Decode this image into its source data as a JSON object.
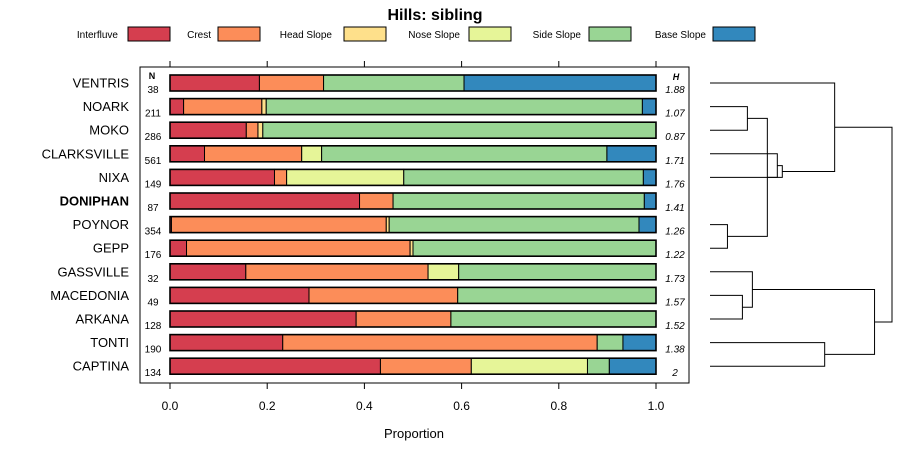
{
  "chart_data": {
    "type": "bar",
    "stacked": true,
    "orientation": "horizontal",
    "title": "Hills: sibling",
    "xlabel": "Proportion",
    "xlim": [
      0,
      1
    ],
    "xticks": [
      "0.0",
      "0.2",
      "0.4",
      "0.6",
      "0.8",
      "1.0"
    ],
    "xtick_values": [
      0,
      0.2,
      0.4,
      0.6,
      0.8,
      1.0
    ],
    "n_header": "N",
    "h_header": "H",
    "legend": [
      {
        "name": "Interfluve",
        "color": "#d53e4f"
      },
      {
        "name": "Crest",
        "color": "#fc8d59"
      },
      {
        "name": "Head Slope",
        "color": "#fee08b"
      },
      {
        "name": "Nose Slope",
        "color": "#e6f598"
      },
      {
        "name": "Side Slope",
        "color": "#99d594"
      },
      {
        "name": "Base Slope",
        "color": "#3288bd"
      }
    ],
    "rows": [
      {
        "label": "VENTRIS",
        "n": "38",
        "h": "1.88",
        "bold": false,
        "values": [
          0.184,
          0.132,
          0,
          0,
          0.289,
          0.395
        ]
      },
      {
        "label": "NOARK",
        "n": "211",
        "h": "1.07",
        "bold": false,
        "values": [
          0.028,
          0.161,
          0.009,
          0,
          0.774,
          0.028
        ]
      },
      {
        "label": "MOKO",
        "n": "286",
        "h": "0.87",
        "bold": false,
        "values": [
          0.157,
          0.024,
          0.01,
          0,
          0.809,
          0
        ]
      },
      {
        "label": "CLARKSVILLE",
        "n": "561",
        "h": "1.71",
        "bold": false,
        "values": [
          0.071,
          0.2,
          0,
          0.041,
          0.587,
          0.101
        ]
      },
      {
        "label": "NIXA",
        "n": "149",
        "h": "1.76",
        "bold": false,
        "values": [
          0.215,
          0.025,
          0,
          0.241,
          0.493,
          0.026
        ]
      },
      {
        "label": "DONIPHAN",
        "n": "87",
        "h": "1.41",
        "bold": true,
        "values": [
          0.39,
          0.069,
          0,
          0,
          0.517,
          0.024
        ]
      },
      {
        "label": "POYNOR",
        "n": "354",
        "h": "1.26",
        "bold": false,
        "values": [
          0.003,
          0.442,
          0.006,
          0,
          0.514,
          0.035
        ]
      },
      {
        "label": "GEPP",
        "n": "176",
        "h": "1.22",
        "bold": false,
        "values": [
          0.034,
          0.46,
          0.006,
          0,
          0.5,
          0
        ]
      },
      {
        "label": "GASSVILLE",
        "n": "32",
        "h": "1.73",
        "bold": false,
        "values": [
          0.156,
          0.375,
          0,
          0.063,
          0.406,
          0
        ]
      },
      {
        "label": "MACEDONIA",
        "n": "49",
        "h": "1.57",
        "bold": false,
        "values": [
          0.286,
          0.306,
          0,
          0,
          0.408,
          0
        ]
      },
      {
        "label": "ARKANA",
        "n": "128",
        "h": "1.52",
        "bold": false,
        "values": [
          0.383,
          0.195,
          0,
          0,
          0.422,
          0
        ]
      },
      {
        "label": "TONTI",
        "n": "190",
        "h": "1.38",
        "bold": false,
        "values": [
          0.232,
          0.647,
          0,
          0,
          0.053,
          0.068
        ]
      },
      {
        "label": "CAPTINA",
        "n": "134",
        "h": "2",
        "bold": false,
        "values": [
          0.433,
          0.187,
          0,
          0.239,
          0.045,
          0.096
        ]
      }
    ],
    "dendrogram": {
      "type": "hierarchical-clustering",
      "merges": [
        [
          1,
          2,
          0.15
        ],
        [
          3,
          4,
          0.27
        ],
        [
          6,
          7,
          0.07
        ],
        [
          9,
          10,
          0.13
        ],
        [
          -1,
          -3,
          0.23
        ],
        [
          8,
          -4,
          0.17
        ],
        [
          11,
          12,
          0.46
        ],
        [
          -2,
          -5,
          0.29
        ],
        [
          0,
          -8,
          0.5
        ],
        [
          -6,
          -7,
          0.66
        ],
        [
          -9,
          -10,
          0.73
        ]
      ]
    }
  }
}
